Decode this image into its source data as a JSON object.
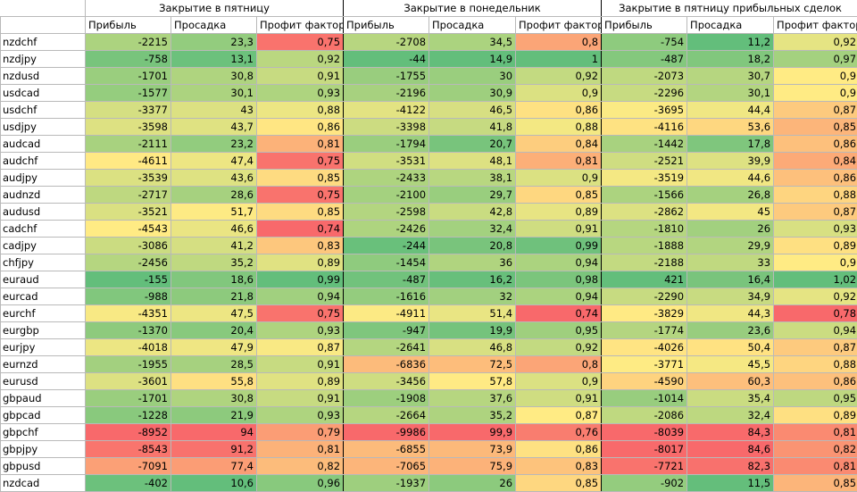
{
  "groups": [
    "Закрытие в пятницу",
    "Закрытие в понедельник",
    "Закрытие в пятницу прибыльных сделок"
  ],
  "subheaders": [
    "Прибыль",
    "Просадка",
    "Профит фактор"
  ],
  "rows": [
    [
      "nzdchf",
      [
        "-2215",
        "23,3",
        "0,75"
      ],
      [
        "-2708",
        "34,5",
        "0,8"
      ],
      [
        "-754",
        "11,2",
        "0,92"
      ]
    ],
    [
      "nzdjpy",
      [
        "-758",
        "13,1",
        "0,92"
      ],
      [
        "-44",
        "14,9",
        "1"
      ],
      [
        "-487",
        "18,2",
        "0,97"
      ]
    ],
    [
      "nzdusd",
      [
        "-1701",
        "30,8",
        "0,91"
      ],
      [
        "-1755",
        "30",
        "0,92"
      ],
      [
        "-2073",
        "30,7",
        "0,9"
      ]
    ],
    [
      "usdcad",
      [
        "-1577",
        "30,1",
        "0,93"
      ],
      [
        "-2196",
        "30,9",
        "0,9"
      ],
      [
        "-2296",
        "30,1",
        "0,9"
      ]
    ],
    [
      "usdchf",
      [
        "-3377",
        "43",
        "0,88"
      ],
      [
        "-4122",
        "46,5",
        "0,86"
      ],
      [
        "-3695",
        "44,4",
        "0,87"
      ]
    ],
    [
      "usdjpy",
      [
        "-3598",
        "43,7",
        "0,86"
      ],
      [
        "-3398",
        "41,8",
        "0,88"
      ],
      [
        "-4116",
        "53,6",
        "0,85"
      ]
    ],
    [
      "audcad",
      [
        "-2111",
        "23,2",
        "0,81"
      ],
      [
        "-1794",
        "20,7",
        "0,84"
      ],
      [
        "-1442",
        "17,8",
        "0,86"
      ]
    ],
    [
      "audchf",
      [
        "-4611",
        "47,4",
        "0,75"
      ],
      [
        "-3531",
        "48,1",
        "0,81"
      ],
      [
        "-2521",
        "39,9",
        "0,84"
      ]
    ],
    [
      "audjpy",
      [
        "-3539",
        "43,6",
        "0,85"
      ],
      [
        "-2433",
        "38,1",
        "0,9"
      ],
      [
        "-3519",
        "44,6",
        "0,86"
      ]
    ],
    [
      "audnzd",
      [
        "-2717",
        "28,6",
        "0,75"
      ],
      [
        "-2100",
        "29,7",
        "0,85"
      ],
      [
        "-1566",
        "26,8",
        "0,88"
      ]
    ],
    [
      "audusd",
      [
        "-3521",
        "51,7",
        "0,85"
      ],
      [
        "-2598",
        "42,8",
        "0,89"
      ],
      [
        "-2862",
        "45",
        "0,87"
      ]
    ],
    [
      "cadchf",
      [
        "-4543",
        "46,6",
        "0,74"
      ],
      [
        "-2426",
        "32,4",
        "0,91"
      ],
      [
        "-1810",
        "26",
        "0,93"
      ]
    ],
    [
      "cadjpy",
      [
        "-3086",
        "41,2",
        "0,83"
      ],
      [
        "-244",
        "20,8",
        "0,99"
      ],
      [
        "-1888",
        "29,9",
        "0,89"
      ]
    ],
    [
      "chfjpy",
      [
        "-2456",
        "35,2",
        "0,89"
      ],
      [
        "-1454",
        "36",
        "0,94"
      ],
      [
        "-2188",
        "33",
        "0,9"
      ]
    ],
    [
      "euraud",
      [
        "-155",
        "18,6",
        "0,99"
      ],
      [
        "-487",
        "16,2",
        "0,98"
      ],
      [
        "421",
        "16,4",
        "1,02"
      ]
    ],
    [
      "eurcad",
      [
        "-988",
        "21,8",
        "0,94"
      ],
      [
        "-1616",
        "32",
        "0,94"
      ],
      [
        "-2290",
        "34,9",
        "0,92"
      ]
    ],
    [
      "eurchf",
      [
        "-4351",
        "47,5",
        "0,75"
      ],
      [
        "-4911",
        "51,4",
        "0,74"
      ],
      [
        "-3829",
        "44,3",
        "0,78"
      ]
    ],
    [
      "eurgbp",
      [
        "-1370",
        "20,4",
        "0,93"
      ],
      [
        "-947",
        "19,9",
        "0,95"
      ],
      [
        "-1774",
        "23,6",
        "0,94"
      ]
    ],
    [
      "eurjpy",
      [
        "-4018",
        "47,9",
        "0,87"
      ],
      [
        "-2641",
        "46,8",
        "0,92"
      ],
      [
        "-4026",
        "50,4",
        "0,87"
      ]
    ],
    [
      "eurnzd",
      [
        "-1955",
        "28,5",
        "0,91"
      ],
      [
        "-6836",
        "72,5",
        "0,8"
      ],
      [
        "-3771",
        "45,5",
        "0,88"
      ]
    ],
    [
      "eurusd",
      [
        "-3601",
        "55,8",
        "0,89"
      ],
      [
        "-3456",
        "57,8",
        "0,9"
      ],
      [
        "-4590",
        "60,3",
        "0,86"
      ]
    ],
    [
      "gbpaud",
      [
        "-1701",
        "30,8",
        "0,91"
      ],
      [
        "-1908",
        "37,6",
        "0,91"
      ],
      [
        "-1014",
        "35,4",
        "0,95"
      ]
    ],
    [
      "gbpcad",
      [
        "-1228",
        "21,9",
        "0,93"
      ],
      [
        "-2664",
        "35,2",
        "0,87"
      ],
      [
        "-2086",
        "32,4",
        "0,89"
      ]
    ],
    [
      "gbpchf",
      [
        "-8952",
        "94",
        "0,79"
      ],
      [
        "-9986",
        "99,9",
        "0,76"
      ],
      [
        "-8039",
        "84,3",
        "0,81"
      ]
    ],
    [
      "gbpjpy",
      [
        "-8543",
        "91,2",
        "0,81"
      ],
      [
        "-6855",
        "73,9",
        "0,86"
      ],
      [
        "-8017",
        "84,6",
        "0,82"
      ]
    ],
    [
      "gbpusd",
      [
        "-7091",
        "77,4",
        "0,82"
      ],
      [
        "-7065",
        "75,9",
        "0,83"
      ],
      [
        "-7721",
        "82,3",
        "0,81"
      ]
    ],
    [
      "nzdcad",
      [
        "-402",
        "10,6",
        "0,96"
      ],
      [
        "-1937",
        "26",
        "0,85"
      ],
      [
        "-902",
        "11,5",
        "0,85"
      ]
    ]
  ],
  "colors": {
    "good": "#63be7b",
    "mid": "#ffeb84",
    "bad": "#f8696b"
  }
}
